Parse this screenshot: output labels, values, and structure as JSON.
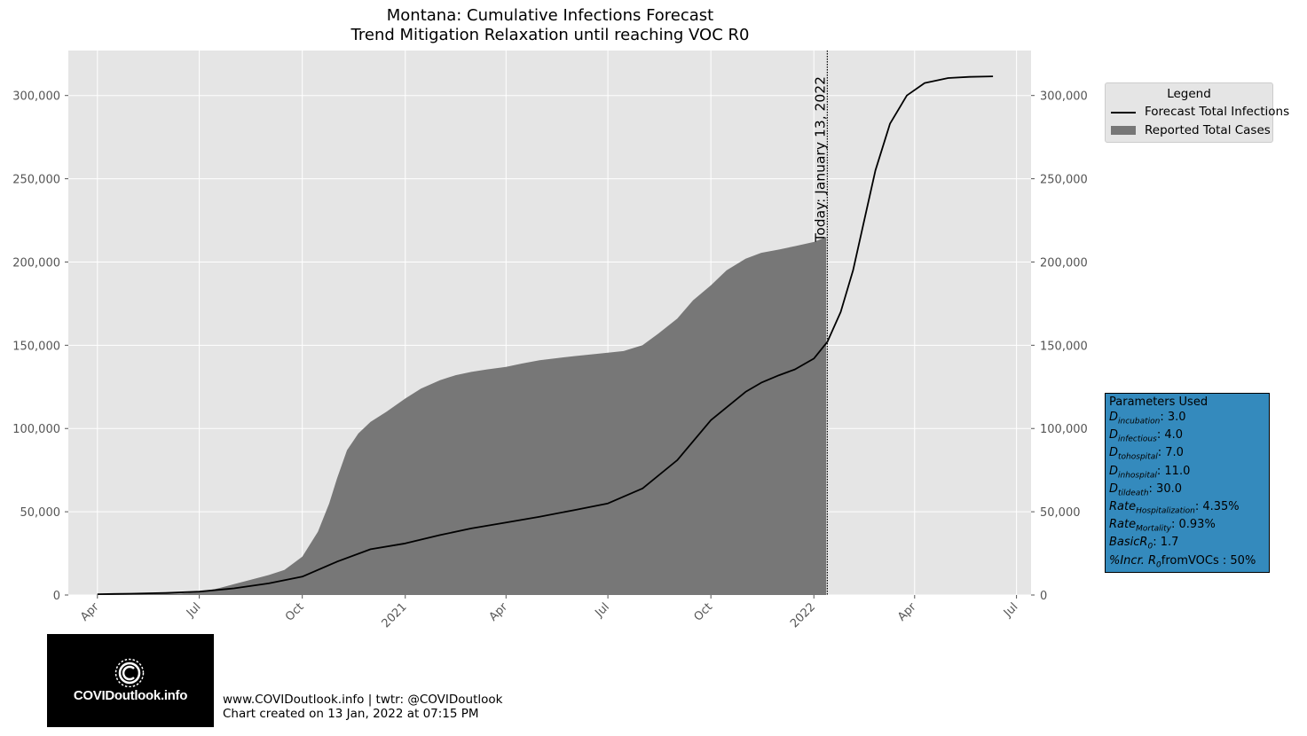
{
  "chart_data": {
    "type": "area",
    "title": "Montana: Cumulative Infections Forecast",
    "subtitle": "Trend Mitigation Relaxation until reaching VOC R0",
    "x_ticks": [
      "Apr",
      "Jul",
      "Oct",
      "2021",
      "Apr",
      "Jul",
      "Oct",
      "2022",
      "Apr",
      "Jul"
    ],
    "x_tick_dates": [
      "2020-04-01",
      "2020-07-01",
      "2020-10-01",
      "2021-01-01",
      "2021-04-01",
      "2021-07-01",
      "2021-10-01",
      "2022-01-01",
      "2022-04-01",
      "2022-07-01"
    ],
    "xlim": [
      "2020-03-06",
      "2022-07-14"
    ],
    "y_ticks": [
      "0",
      "50,000",
      "100,000",
      "150,000",
      "200,000",
      "250,000",
      "300,000"
    ],
    "ylim": [
      0,
      327000
    ],
    "grid": true,
    "legend": {
      "title": "Legend",
      "placement": "outside-right"
    },
    "today_line": {
      "date": "2022-01-13",
      "label": "Today: January 13, 2022"
    },
    "series": [
      {
        "name": "Reported Total Cases",
        "kind": "area",
        "color": "#777777",
        "x": [
          "2020-03-31",
          "2020-05-01",
          "2020-06-15",
          "2020-07-01",
          "2020-07-15",
          "2020-08-01",
          "2020-08-15",
          "2020-09-01",
          "2020-09-15",
          "2020-10-01",
          "2020-10-15",
          "2020-10-25",
          "2020-11-01",
          "2020-11-10",
          "2020-11-15",
          "2020-11-20",
          "2020-12-01",
          "2020-12-15",
          "2021-01-01",
          "2021-01-15",
          "2021-02-01",
          "2021-02-15",
          "2021-03-01",
          "2021-03-15",
          "2021-04-01",
          "2021-04-15",
          "2021-05-01",
          "2021-06-01",
          "2021-07-01",
          "2021-07-15",
          "2021-08-01",
          "2021-08-15",
          "2021-09-01",
          "2021-09-15",
          "2021-10-01",
          "2021-10-15",
          "2021-11-01",
          "2021-11-15",
          "2021-12-01",
          "2021-12-15",
          "2022-01-01",
          "2022-01-12"
        ],
        "y": [
          150,
          500,
          900,
          1800,
          3500,
          6500,
          9000,
          12000,
          15000,
          23000,
          38000,
          55000,
          70000,
          87000,
          92000,
          97000,
          104000,
          110000,
          118000,
          124000,
          129000,
          132000,
          134000,
          135500,
          137000,
          139000,
          141000,
          143500,
          145500,
          146500,
          150000,
          157000,
          166000,
          177000,
          186000,
          195000,
          202000,
          205500,
          207500,
          209500,
          212000,
          215000
        ]
      },
      {
        "name": "Forecast Total Infections",
        "kind": "line",
        "color": "#000000",
        "x": [
          "2020-04-01",
          "2020-05-01",
          "2020-06-01",
          "2020-07-01",
          "2020-08-01",
          "2020-09-01",
          "2020-10-01",
          "2020-11-01",
          "2020-12-01",
          "2021-01-01",
          "2021-02-01",
          "2021-03-01",
          "2021-04-01",
          "2021-05-01",
          "2021-06-01",
          "2021-07-01",
          "2021-08-01",
          "2021-09-01",
          "2021-10-01",
          "2021-11-01",
          "2021-11-15",
          "2021-12-01",
          "2021-12-15",
          "2022-01-01",
          "2022-01-13",
          "2022-01-25",
          "2022-02-05",
          "2022-02-15",
          "2022-02-25",
          "2022-03-10",
          "2022-03-25",
          "2022-04-10",
          "2022-05-01",
          "2022-05-20",
          "2022-06-10"
        ],
        "y": [
          500,
          800,
          1200,
          2000,
          4000,
          7000,
          11000,
          20000,
          27500,
          31000,
          36000,
          40000,
          43500,
          47000,
          51000,
          55000,
          64000,
          81000,
          105000,
          122000,
          127500,
          132000,
          135500,
          142000,
          152000,
          170000,
          195000,
          225000,
          255000,
          283000,
          300000,
          307500,
          310500,
          311200,
          311500
        ]
      }
    ]
  },
  "params": {
    "title": "Parameters Used",
    "rows": [
      {
        "label": "D",
        "sub": "incubation",
        "value": ": 3.0"
      },
      {
        "label": "D",
        "sub": "infectious",
        "value": ": 4.0"
      },
      {
        "label": "D",
        "sub": "tohospital",
        "value": ": 7.0"
      },
      {
        "label": "D",
        "sub": "inhospital",
        "value": ": 11.0"
      },
      {
        "label": "D",
        "sub": "tildeath",
        "value": ": 30.0"
      },
      {
        "label": "Rate",
        "sub": "Hospitalization",
        "value": ": 4.35%"
      },
      {
        "label": "Rate",
        "sub": "Mortality",
        "value": ": 0.93%"
      },
      {
        "label": "BasicR",
        "sub": "0",
        "value": ": 1.7"
      },
      {
        "label": "%Incr. R",
        "sub": "0",
        "value": "fromVOCs : 50%"
      }
    ]
  },
  "logo": {
    "text": "COVIDoutlook.info",
    "icon": "virus-c-icon"
  },
  "footer": {
    "line1": "www.COVIDoutlook.info | twtr: @COVIDoutlook",
    "line2": "Chart created on 13 Jan, 2022 at 07:15 PM"
  },
  "colors": {
    "plot_bg": "#e5e5e5",
    "grid": "#ffffff",
    "area": "#777777",
    "line": "#000000",
    "params_bg": "#348abd"
  }
}
